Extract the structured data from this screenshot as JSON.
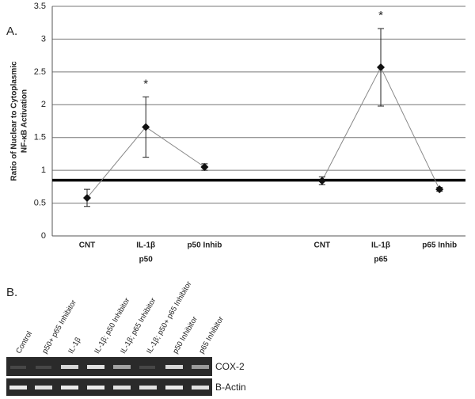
{
  "panel_labels": [
    "A.",
    "B."
  ],
  "chart_data": {
    "type": "line",
    "ylabel": [
      "Ratio of Nuclear to Cytoplasmic",
      "NF-κB Activation"
    ],
    "categories": [
      "CNT",
      "IL-1β",
      "p50 Inhib",
      null,
      "CNT",
      "IL-1β",
      "p65 Inhib"
    ],
    "group_labels": [
      null,
      "p50",
      null,
      null,
      null,
      "p65",
      null
    ],
    "values": [
      0.58,
      1.66,
      1.05,
      null,
      0.84,
      2.57,
      0.71
    ],
    "errors": [
      0.13,
      0.46,
      0.05,
      null,
      0.06,
      0.59,
      0.03
    ],
    "markers": [
      null,
      "*",
      null,
      null,
      null,
      "*",
      null
    ],
    "reference_line": 0.85,
    "color": "#111111",
    "ylim": [
      0,
      3.5
    ],
    "yticks": [
      0,
      0.5,
      1,
      1.5,
      2,
      2.5,
      3,
      3.5
    ],
    "grid": true
  },
  "gel": {
    "lanes": [
      "Control",
      "p50+ p65 Inhibitor",
      "IL-1β",
      "IL-1β; p50 Inhibitor",
      "IL-1β; p65 Inhibitor",
      "IL-1β; p50+ p65 Inhibitor",
      "p50 Inhibitor",
      "p65 Inhibitor"
    ],
    "rows": [
      "COX-2",
      "B-Actin"
    ]
  }
}
